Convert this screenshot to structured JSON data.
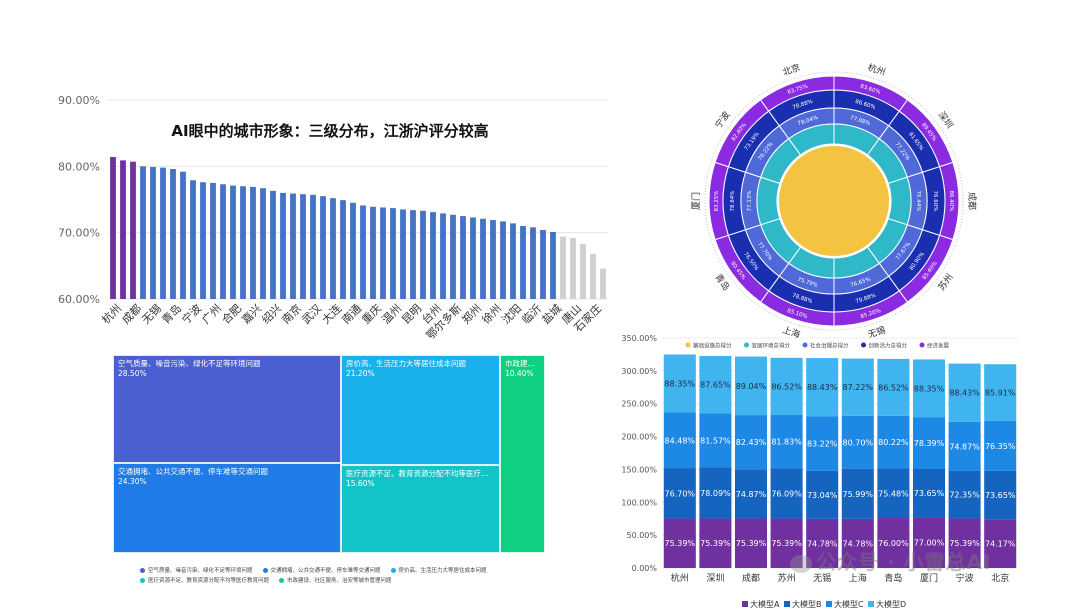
{
  "watermark": {
    "text": "公众号 · 小雷总AI"
  },
  "colors": {
    "purple": "#7030a0",
    "blue": "#4472c4",
    "gray": "#d0d0d0"
  },
  "chart_data": [
    {
      "type": "bar",
      "title": "AI眼中的城市形象：三级分布，江浙沪评分较高",
      "ylim": [
        60,
        90
      ],
      "yticks": [
        "60.00%",
        "70.00%",
        "80.00%",
        "90.00%"
      ],
      "ytick_values": [
        60,
        70,
        80,
        90
      ],
      "x_labels": [
        "杭州",
        "成都",
        "无锡",
        "青岛",
        "宁波",
        "广州",
        "合肥",
        "嘉兴",
        "绍兴",
        "南京",
        "武汉",
        "大连",
        "南通",
        "重庆",
        "温州",
        "昆明",
        "台州",
        "鄂尔多斯",
        "郑州",
        "徐州",
        "沈阳",
        "临沂",
        "盐城",
        "唐山",
        "石家庄"
      ],
      "values": [
        81.4,
        80.9,
        80.7,
        80.0,
        79.9,
        79.8,
        79.6,
        79.2,
        77.9,
        77.6,
        77.5,
        77.3,
        77.1,
        77.0,
        76.9,
        76.7,
        76.3,
        76.0,
        75.9,
        75.8,
        75.7,
        75.5,
        75.2,
        74.9,
        74.5,
        74.1,
        73.9,
        73.8,
        73.7,
        73.5,
        73.4,
        73.3,
        73.1,
        72.9,
        72.7,
        72.5,
        72.3,
        72.1,
        71.9,
        71.7,
        71.4,
        71.0,
        70.8,
        70.4,
        70.1,
        69.4,
        69.2,
        68.3,
        66.8,
        64.6
      ],
      "tiers": [
        "a",
        "a",
        "a",
        "b",
        "b",
        "b",
        "b",
        "b",
        "b",
        "b",
        "b",
        "b",
        "b",
        "b",
        "b",
        "b",
        "b",
        "b",
        "b",
        "b",
        "b",
        "b",
        "b",
        "b",
        "b",
        "b",
        "b",
        "b",
        "b",
        "b",
        "b",
        "b",
        "b",
        "b",
        "b",
        "b",
        "b",
        "b",
        "b",
        "b",
        "b",
        "b",
        "b",
        "b",
        "b",
        "c",
        "c",
        "c",
        "c",
        "c"
      ]
    },
    {
      "type": "pie",
      "variant": "sunburst",
      "outer_labels": [
        "杭州",
        "深圳",
        "成都",
        "苏州",
        "无锡",
        "上海",
        "青岛",
        "厦门",
        "宁波",
        "北京"
      ],
      "rings": [
        {
          "name": "经济发展",
          "color": "#8a2be2",
          "values": [
            "83.60%",
            "89.45%",
            "86.40%",
            "85.40%",
            "85.20%",
            "85.10%",
            "80.45%",
            "83.25%",
            "82.40%",
            "83.75%"
          ]
        },
        {
          "name": "创新活力",
          "color": "#1a2fb0",
          "values": [
            "86.60%",
            "81.65%",
            "76.60%",
            "80.90%",
            "79.88%",
            "78.88%",
            "76.50%",
            "78.84%",
            "73.19%",
            "78.88%"
          ]
        },
        {
          "name": "社会治理",
          "color": "#4f6ad8",
          "values": [
            "77.08%",
            "77.22%",
            "75.44%",
            "77.67%",
            "76.65%",
            "75.79%",
            "77.70%",
            "77.13%",
            "76.22%",
            "78.04%"
          ]
        },
        {
          "name": "宜居环境",
          "color": "#2fb8c8",
          "values": [
            "",
            "",
            "",
            "",
            "",
            "",
            "",
            "",
            "",
            ""
          ]
        },
        {
          "name": "基础设施",
          "color": "#f5c342",
          "values": []
        }
      ]
    },
    {
      "type": "table",
      "variant": "treemap",
      "items": [
        {
          "label": "空气质量、噪音污染、绿化不足等环境问题",
          "value": "28.50%",
          "color": "#4a5fd0"
        },
        {
          "label": "交通拥堵、公共交通不便、停车难等交通问题",
          "value": "24.30%",
          "color": "#1e7be8"
        },
        {
          "label": "房价高、生活压力大等居住成本问题",
          "value": "21.20%",
          "color": "#1ab0ec"
        },
        {
          "label": "医疗资源不足、教育资源分配不均等医疗教育问题",
          "value": "15.60%",
          "color": "#12c4c8"
        },
        {
          "label": "市政建设、社区服务、治安等城市管理问题",
          "value": "10.40%",
          "color": "#0fd080"
        }
      ],
      "legend": [
        "空气质量、噪音污染、绿化不足等环境问题",
        "交通拥堵、公共交通不便、停车难等交通问题",
        "房价高、生活压力大等居住成本问题",
        "医疗资源不足、教育资源分配不均等医疗教育问题",
        "市政建设、社区服务、治安等城市管理问题"
      ]
    },
    {
      "type": "bar",
      "variant": "stacked",
      "categories": [
        "杭州",
        "深圳",
        "成都",
        "苏州",
        "无锡",
        "上海",
        "青岛",
        "厦门",
        "宁波",
        "北京"
      ],
      "ylim": [
        0,
        350
      ],
      "yticks": [
        "0.00%",
        "50.00%",
        "100.00%",
        "150.00%",
        "200.00%",
        "250.00%",
        "300.00%",
        "350.00%"
      ],
      "top_legend": [
        "基础设施总得分",
        "宜居环境总得分",
        "社会治理总得分",
        "创新活力总得分",
        "经济发展"
      ],
      "top_legend_colors": [
        "#f5c342",
        "#2fb8c8",
        "#4f6ad8",
        "#1a2fb0",
        "#8a2be2"
      ],
      "series": [
        {
          "name": "大模型A",
          "color": "#7030a0",
          "values": [
            75.39,
            75.39,
            75.39,
            75.39,
            74.78,
            74.78,
            76.0,
            77.0,
            75.39,
            74.17
          ],
          "labels": [
            "75.39%",
            "75.39%",
            "75.39%",
            "75.39%",
            "74.78%",
            "74.78%",
            "76.00%",
            "77.00%",
            "75.39%",
            "74.17%"
          ]
        },
        {
          "name": "大模型B",
          "color": "#1565c0",
          "values": [
            76.7,
            78.09,
            74.87,
            76.09,
            73.04,
            75.99,
            75.48,
            73.65,
            72.35,
            73.65
          ],
          "labels": [
            "76.70%",
            "78.09%",
            "74.87%",
            "76.09%",
            "73.04%",
            "75.99%",
            "75.48%",
            "73.65%",
            "72.35%",
            "73.65%"
          ]
        },
        {
          "name": "大模型C",
          "color": "#1e88e5",
          "values": [
            84.48,
            81.57,
            82.43,
            81.83,
            83.22,
            80.7,
            80.22,
            78.39,
            74.87,
            76.35
          ],
          "labels": [
            "84.48%",
            "81.57%",
            "82.43%",
            "81.83%",
            "83.22%",
            "80.70%",
            "80.22%",
            "78.39%",
            "74.87%",
            "76.35%"
          ]
        },
        {
          "name": "大模型D",
          "color": "#40b4ee",
          "values": [
            88.35,
            87.65,
            89.04,
            86.52,
            88.43,
            87.22,
            86.52,
            88.35,
            88.43,
            85.91
          ],
          "labels": [
            "88.35%",
            "87.65%",
            "89.04%",
            "86.52%",
            "88.43%",
            "87.22%",
            "86.52%",
            "88.35%",
            "88.43%",
            "85.91%"
          ]
        }
      ]
    }
  ]
}
